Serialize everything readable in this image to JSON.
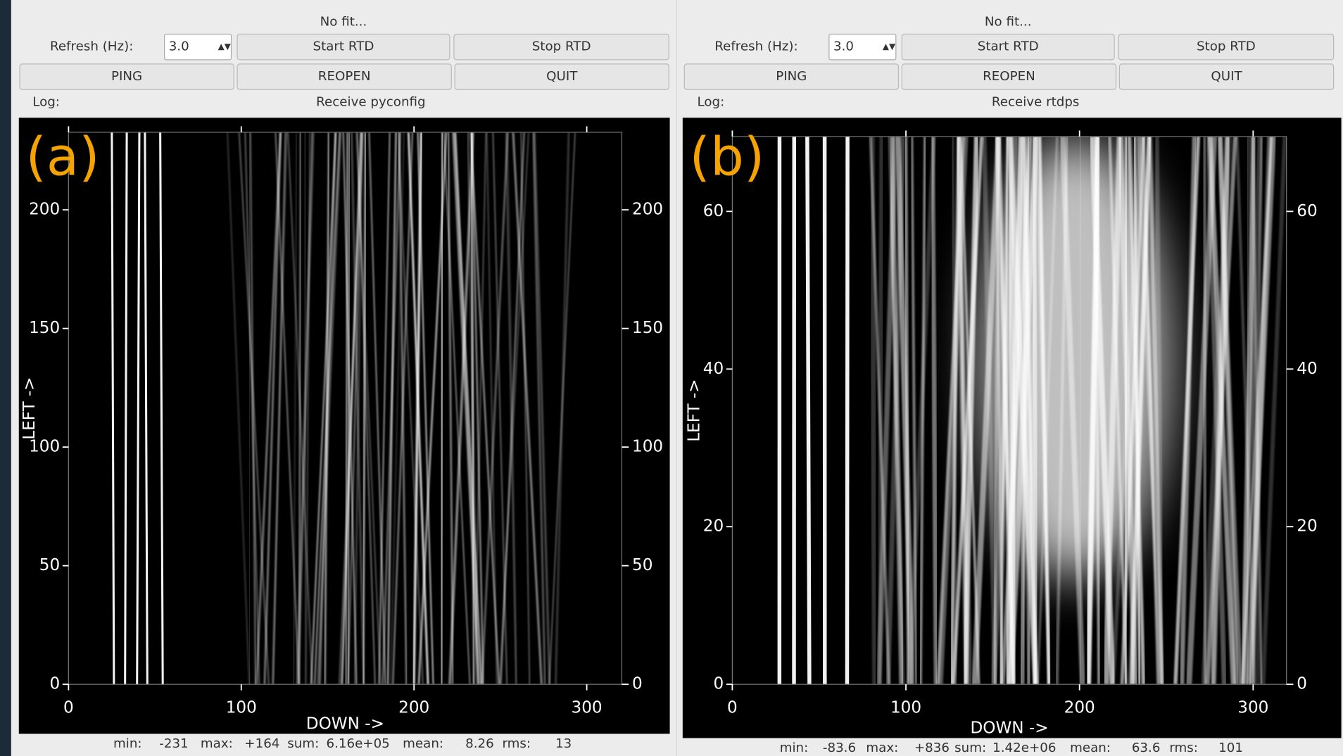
{
  "panels": [
    {
      "label": "(a)",
      "status": "No fit...",
      "refresh_label": "Refresh (Hz):",
      "refresh_value": "3.0",
      "buttons": [
        "Start RTD",
        "Stop RTD",
        "PING",
        "REOPEN",
        "QUIT"
      ],
      "log_label": "Log:",
      "log_message": "Receive pyconfig",
      "plot": {
        "xlabel": "DOWN ->",
        "ylabel": "LEFT ->",
        "xlim": [
          0,
          320.3
        ],
        "ylim": [
          0,
          232.7
        ],
        "xticks": [
          0,
          100,
          200,
          300
        ],
        "yticks": [
          0,
          50,
          100,
          150,
          200
        ]
      },
      "stats": [
        {
          "label": "min:",
          "value": "-231"
        },
        {
          "label": "max:",
          "value": "+164"
        },
        {
          "label": "sum:",
          "value": "6.16e+05"
        },
        {
          "label": "mean:",
          "value": "8.26"
        },
        {
          "label": "rms:",
          "value": "13"
        }
      ]
    },
    {
      "label": "(b)",
      "status": "No fit...",
      "refresh_label": "Refresh (Hz):",
      "refresh_value": "3.0",
      "buttons": [
        "Start RTD",
        "Stop RTD",
        "PING",
        "REOPEN",
        "QUIT"
      ],
      "log_label": "Log:",
      "log_message": "Receive rtdps",
      "plot": {
        "xlabel": "DOWN ->",
        "ylabel": "LEFT ->",
        "xlim": [
          0,
          319.2
        ],
        "ylim": [
          0,
          69.5
        ],
        "xticks": [
          0,
          100,
          200,
          300
        ],
        "yticks": [
          0,
          20,
          40,
          60
        ]
      },
      "stats": [
        {
          "label": "min:",
          "value": "-83.6"
        },
        {
          "label": "max:",
          "value": "+836"
        },
        {
          "label": "sum:",
          "value": "1.42e+06"
        },
        {
          "label": "mean:",
          "value": "63.6"
        },
        {
          "label": "rms:",
          "value": "101"
        }
      ]
    }
  ]
}
